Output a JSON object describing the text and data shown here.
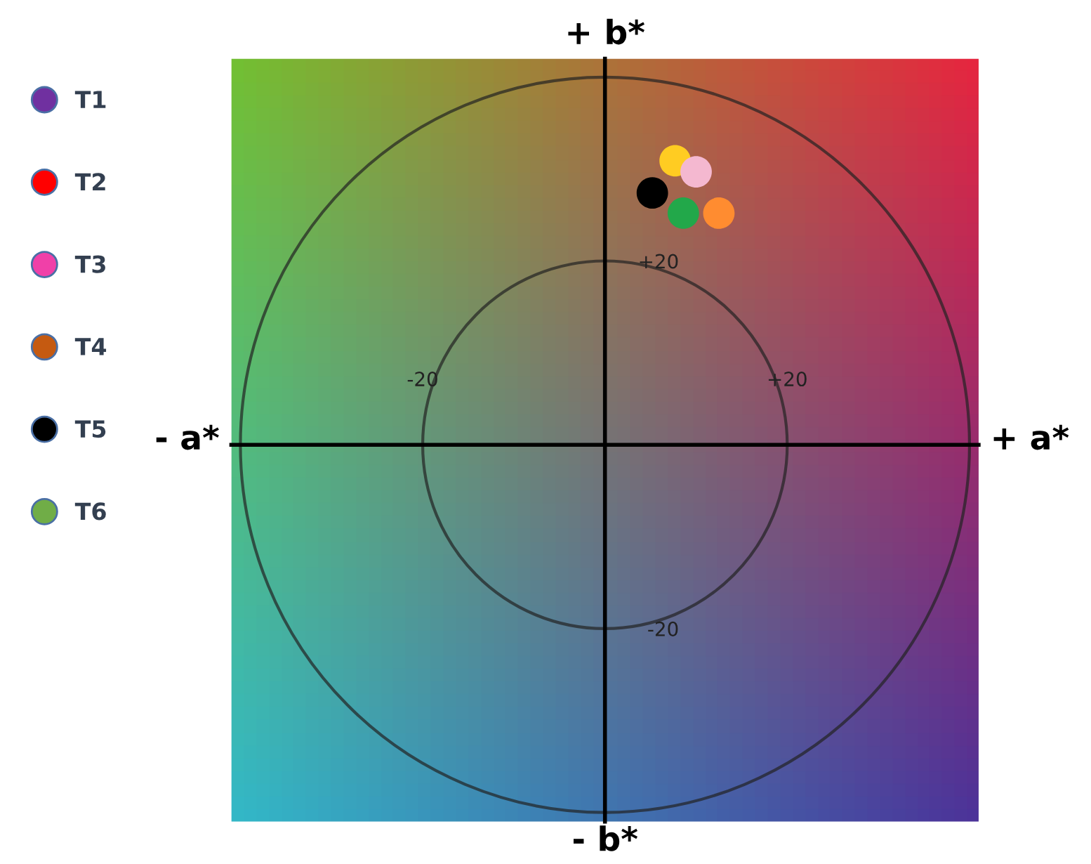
{
  "chart_data": {
    "type": "scatter",
    "xlim": [
      -41,
      41
    ],
    "ylim": [
      -41,
      42
    ],
    "xticks": [
      {
        "value": -20,
        "label": "-20"
      },
      {
        "value": 20,
        "label": "+20"
      }
    ],
    "yticks": [
      {
        "value": -20,
        "label": "-20"
      },
      {
        "value": 20,
        "label": "+20"
      }
    ],
    "annotations": [
      "+ b*",
      "- b*",
      "- a*",
      "+ a*"
    ],
    "legend": "left",
    "marker": "circle",
    "grid": false,
    "series": [
      {
        "name": "T1",
        "color": "#7030a0",
        "x": [
          null
        ],
        "values": [
          null
        ]
      },
      {
        "name": "T2",
        "color": "#ff0000",
        "x": [
          null
        ],
        "values": [
          null
        ]
      },
      {
        "name": "T3",
        "color": "#f040a8",
        "x": [
          null
        ],
        "values": [
          null
        ]
      },
      {
        "name": "T4",
        "color": "#c55a11",
        "x": [
          null
        ],
        "values": [
          null
        ]
      },
      {
        "name": "T5",
        "color": "#000000",
        "x": [
          null
        ],
        "values": [
          null
        ]
      },
      {
        "name": "T6",
        "color": "#70ad47",
        "x": [
          null
        ],
        "values": [
          null
        ]
      },
      {
        "color": "#ffcc22",
        "x": [
          7.7
        ],
        "values": [
          30.9
        ]
      },
      {
        "color": "#f4b8d0",
        "x": [
          10.0
        ],
        "values": [
          29.7
        ]
      },
      {
        "color": "#000000",
        "x": [
          5.2
        ],
        "values": [
          27.4
        ]
      },
      {
        "color": "#ff8c30",
        "x": [
          12.5
        ],
        "values": [
          25.2
        ]
      },
      {
        "color": "#22a84a",
        "x": [
          8.6
        ],
        "values": [
          25.2
        ]
      }
    ]
  }
}
